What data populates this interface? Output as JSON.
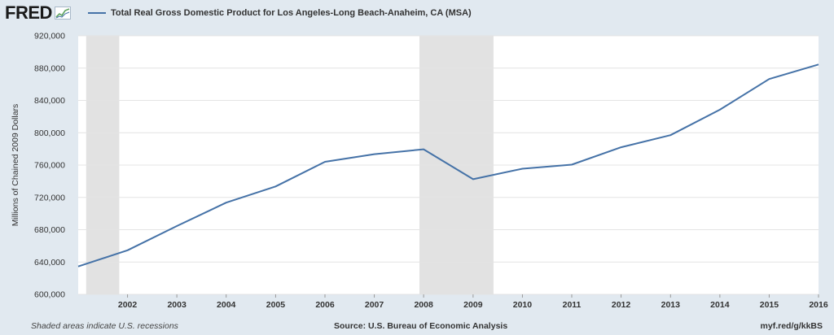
{
  "header": {
    "logo_text": "FRED",
    "logo_icon": "trend-graph-icon",
    "series_legend": "Total Real Gross Domestic Product for Los Angeles-Long Beach-Anaheim, CA (MSA)"
  },
  "footer": {
    "left_note": "Shaded areas indicate U.S. recessions",
    "source": "Source: U.S. Bureau of Economic Analysis",
    "short_url": "myf.red/g/kkBS"
  },
  "colors": {
    "line": "#4572a7",
    "recession_shade": "#e2e2e2",
    "plot_background": "#ffffff",
    "frame_background": "#e1e9f0",
    "grid": "#e4e4e4"
  },
  "chart_data": {
    "type": "line",
    "title": "",
    "xlabel": "",
    "ylabel": "Millions of Chained 2009 Dollars",
    "x_tick_labels": [
      "2002",
      "2003",
      "2004",
      "2005",
      "2006",
      "2007",
      "2008",
      "2009",
      "2010",
      "2011",
      "2012",
      "2013",
      "2014",
      "2015",
      "2016"
    ],
    "y_tick_labels": [
      "600,000",
      "640,000",
      "680,000",
      "720,000",
      "760,000",
      "800,000",
      "840,000",
      "880,000",
      "920,000"
    ],
    "ylim": [
      600000,
      920000
    ],
    "xlim": [
      "2001-01-01",
      "2016-01-01"
    ],
    "grid": "horizontal",
    "legend_placement": "top-left",
    "recessions": [
      {
        "start": "2001-03-01",
        "end": "2001-11-01"
      },
      {
        "start": "2007-12-01",
        "end": "2009-06-01"
      }
    ],
    "series": [
      {
        "name": "Total Real Gross Domestic Product for Los Angeles-Long Beach-Anaheim, CA (MSA)",
        "x": [
          "2001-01-01",
          "2002-01-01",
          "2003-01-01",
          "2004-01-01",
          "2005-01-01",
          "2006-01-01",
          "2007-01-01",
          "2008-01-01",
          "2009-01-01",
          "2010-01-01",
          "2011-01-01",
          "2012-01-01",
          "2013-01-01",
          "2014-01-01",
          "2015-01-01",
          "2016-01-01"
        ],
        "values": [
          634500,
          654500,
          684500,
          713500,
          733500,
          764000,
          773500,
          779500,
          742500,
          755500,
          760500,
          782000,
          797000,
          828500,
          866500,
          884500
        ]
      }
    ]
  }
}
